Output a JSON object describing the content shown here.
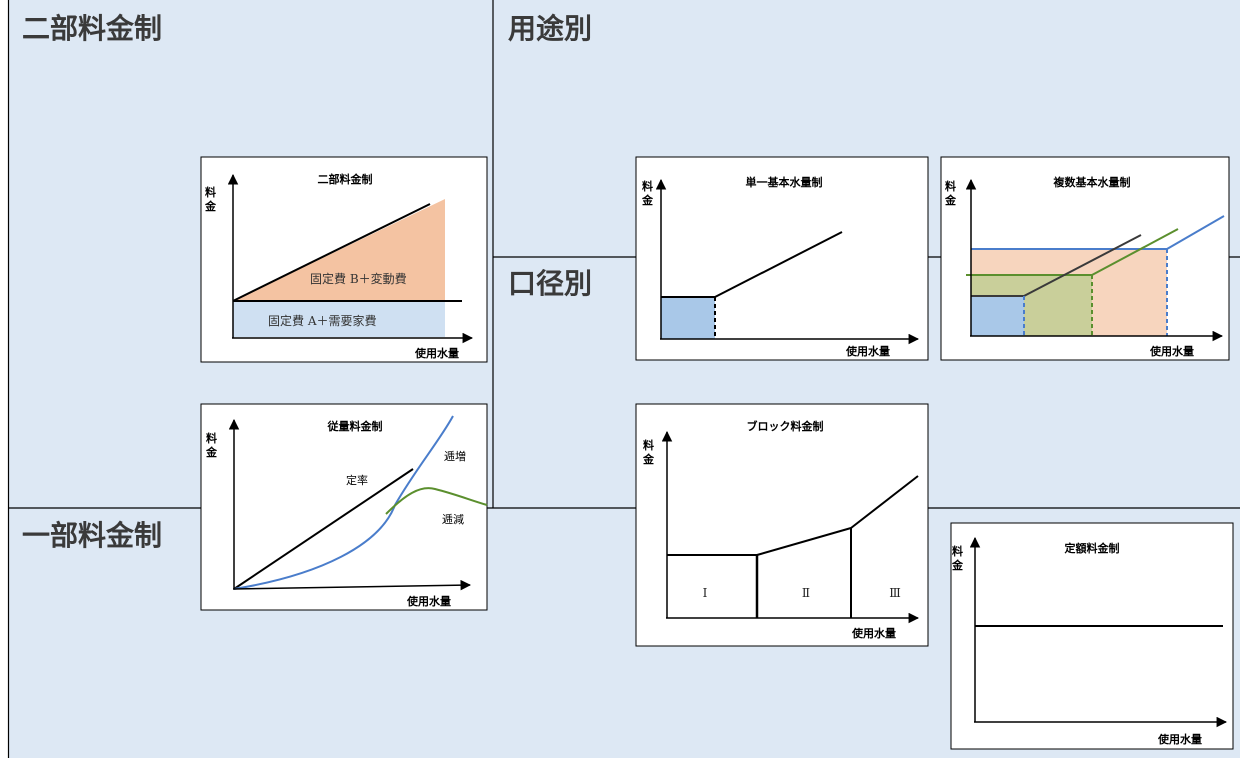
{
  "regions": {
    "two_part": "二部料金制",
    "one_part": "一部料金制",
    "by_use": "用途別",
    "by_diameter": "口径別"
  },
  "axes": {
    "y": [
      "料",
      "金"
    ],
    "x": "使用水量"
  },
  "charts": {
    "two_part": {
      "title": "二部料金制",
      "fixed_b": "固定費 B＋変動費",
      "fixed_a": "固定費 A＋需要家費"
    },
    "metered": {
      "title": "従量料金制",
      "flat_rate": "定率",
      "increasing": "逓増",
      "decreasing": "逓減"
    },
    "single_base": {
      "title": "単一基本水量制"
    },
    "multi_base": {
      "title": "複数基本水量制"
    },
    "block": {
      "title": "ブロック料金制",
      "blocks": [
        "Ⅰ",
        "Ⅱ",
        "Ⅲ"
      ]
    },
    "fixed": {
      "title": "定額料金制"
    }
  },
  "colors": {
    "panel_bg": "#dde8f4",
    "peach": "#f4c3a2",
    "light_blue": "#a9c8e8",
    "blue": "#4a7dcb",
    "green": "#5b8f2e",
    "olive_fill": "#c9cf9a"
  }
}
